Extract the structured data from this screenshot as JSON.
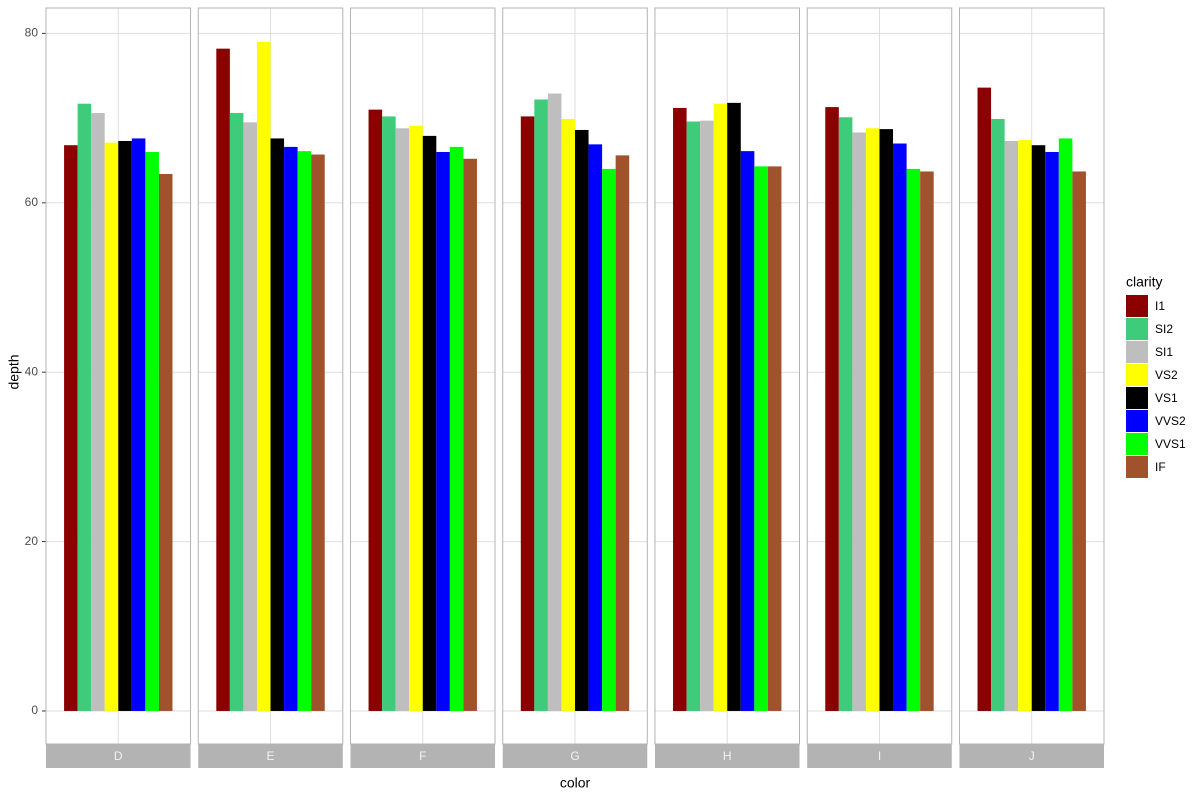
{
  "chart_data": {
    "type": "bar",
    "x_label": "color",
    "y_label": "depth",
    "legend_title": "clarity",
    "legend_position": "right",
    "categories": [
      "D",
      "E",
      "F",
      "G",
      "H",
      "I",
      "J"
    ],
    "ylim": [
      -3.9,
      83
    ],
    "yticks": [
      0,
      20,
      40,
      60,
      80
    ],
    "grid": true,
    "series": [
      {
        "name": "I1",
        "color": "#8b0000",
        "values": [
          66.8,
          78.2,
          71.0,
          70.2,
          71.2,
          71.3,
          73.6
        ]
      },
      {
        "name": "SI2",
        "color": "#3fcc7a",
        "values": [
          71.7,
          70.6,
          70.2,
          72.2,
          69.6,
          70.1,
          69.9
        ]
      },
      {
        "name": "SI1",
        "color": "#bebebe",
        "values": [
          70.6,
          69.5,
          68.8,
          72.9,
          69.7,
          68.3,
          67.3
        ]
      },
      {
        "name": "VS2",
        "color": "#ffff00",
        "values": [
          67.1,
          79.0,
          69.1,
          69.9,
          71.7,
          68.8,
          67.4
        ]
      },
      {
        "name": "VS1",
        "color": "#000000",
        "values": [
          67.3,
          67.6,
          67.9,
          68.6,
          71.8,
          68.7,
          66.8
        ]
      },
      {
        "name": "VVS2",
        "color": "#0000ff",
        "values": [
          67.6,
          66.6,
          66.0,
          66.9,
          66.1,
          67.0,
          66.0
        ]
      },
      {
        "name": "VVS1",
        "color": "#00ff00",
        "values": [
          66.0,
          66.1,
          66.6,
          64.0,
          64.3,
          64.0,
          67.6
        ]
      },
      {
        "name": "IF",
        "color": "#a0522d",
        "values": [
          63.4,
          65.7,
          65.2,
          65.6,
          64.3,
          63.7,
          63.7
        ]
      }
    ]
  }
}
